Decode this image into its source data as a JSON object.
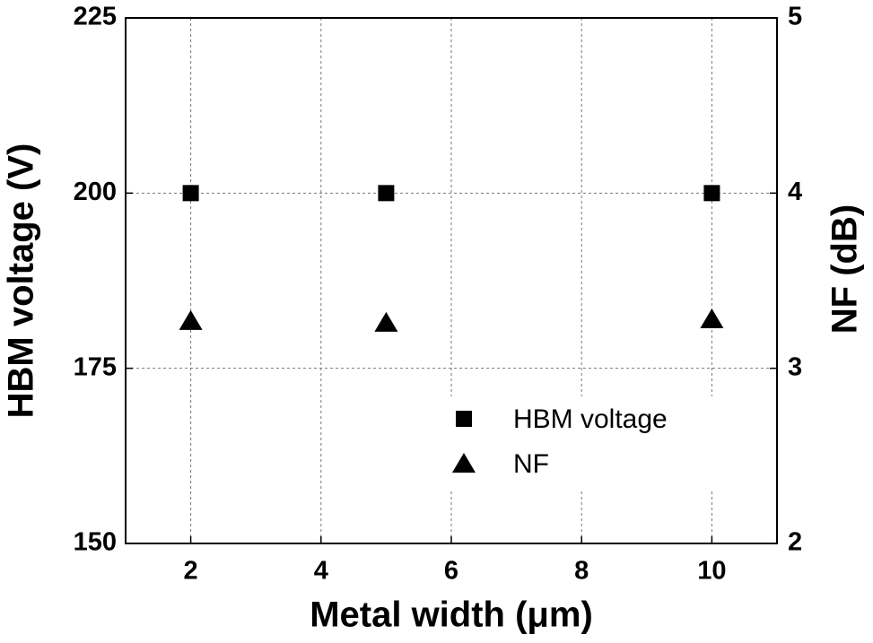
{
  "chart_data": {
    "type": "scatter",
    "x_label": "Metal width (μm)",
    "y_label": "HBM voltage (V)",
    "y2_label": "NF (dB)",
    "x": [
      2,
      5,
      10
    ],
    "series": [
      {
        "name": "HBM voltage",
        "color": "#000000",
        "marker": "square",
        "values": [
          200,
          200,
          200
        ]
      },
      {
        "name": "NF",
        "color": "#000000",
        "marker": "triangle",
        "axis": "y2",
        "values": [
          3.27,
          3.26,
          3.28
        ]
      }
    ],
    "xlim": [
      1,
      11
    ],
    "xticks": [
      2,
      4,
      6,
      8,
      10
    ],
    "ylim": [
      150,
      225
    ],
    "yticks": [
      150,
      175,
      200,
      225
    ],
    "y2lim": [
      2,
      5
    ],
    "y2ticks": [
      2,
      3,
      4,
      5
    ],
    "grid": true
  }
}
